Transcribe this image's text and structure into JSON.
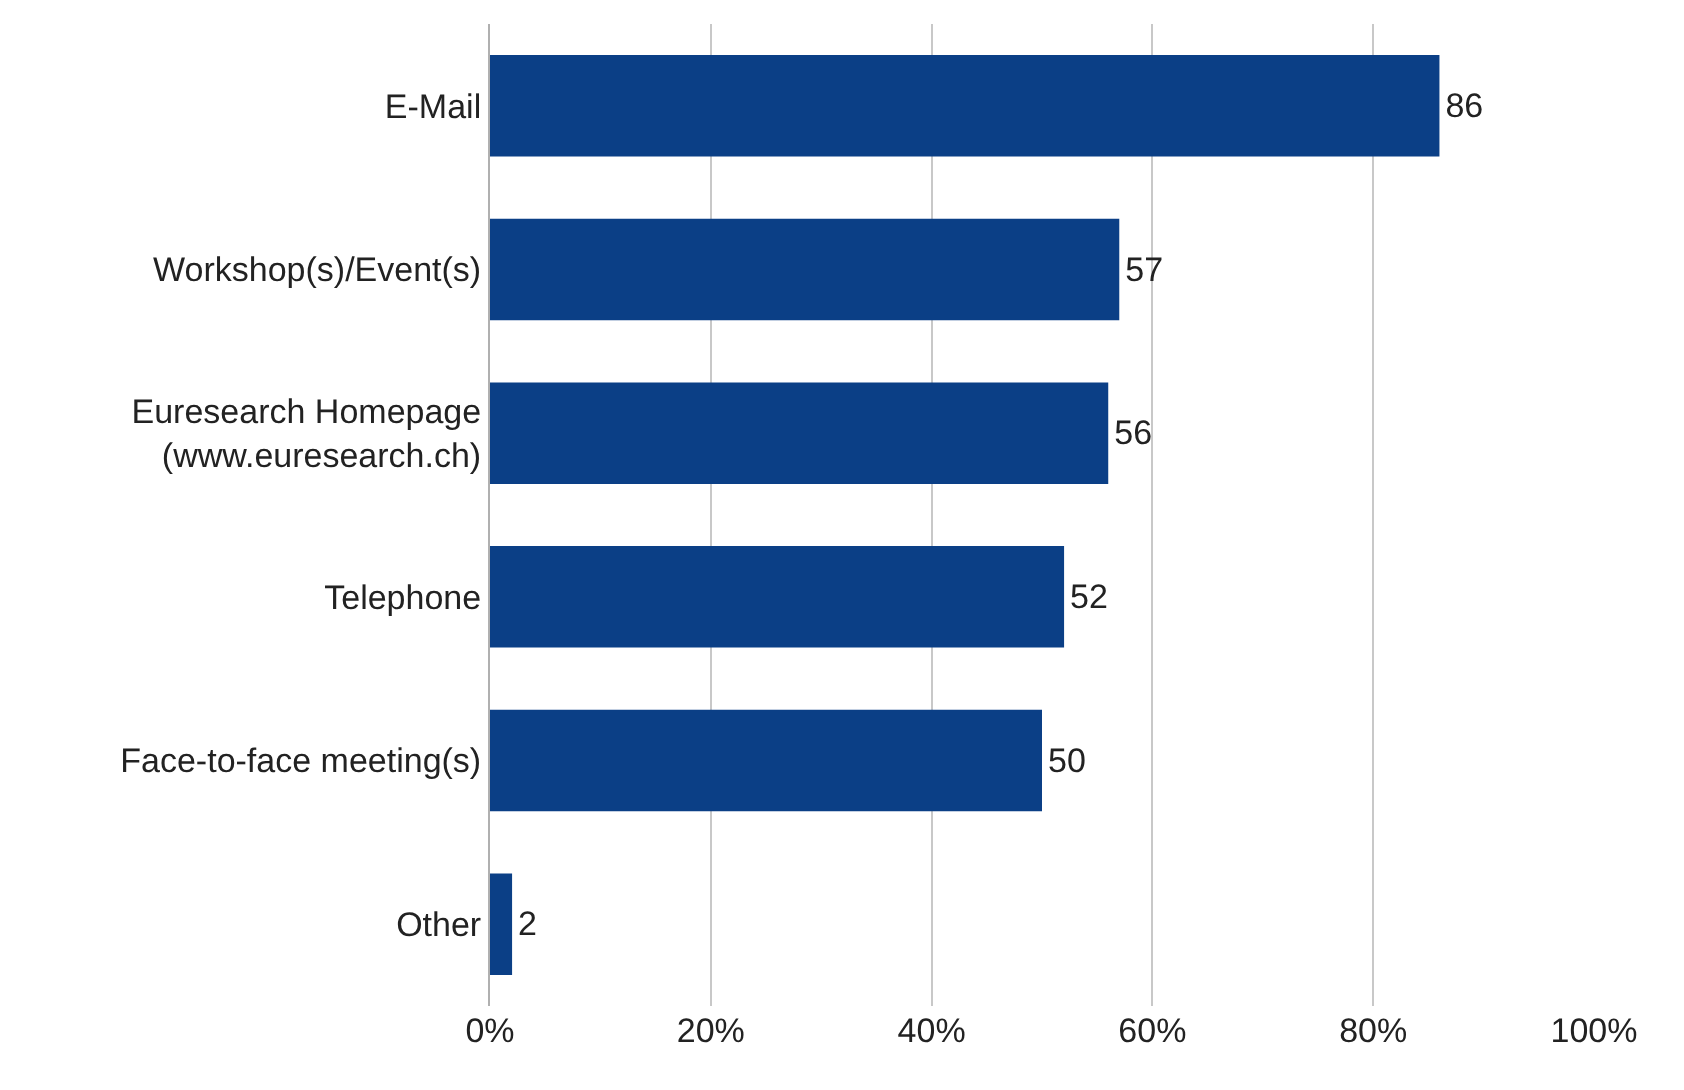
{
  "chart_data": {
    "type": "bar",
    "orientation": "horizontal",
    "categories": [
      "E-Mail",
      "Workshop(s)/Event(s)",
      "Euresearch Homepage\n(www.euresearch.ch)",
      "Telephone",
      "Face-to-face meeting(s)",
      "Other"
    ],
    "values": [
      86,
      57,
      56,
      52,
      50,
      2
    ],
    "color": "#0b3f86",
    "xlim": [
      0,
      100
    ],
    "xticks": [
      {
        "value": 0,
        "label": "0%"
      },
      {
        "value": 20,
        "label": "20%"
      },
      {
        "value": 40,
        "label": "40%"
      },
      {
        "value": 60,
        "label": "60%"
      },
      {
        "value": 80,
        "label": "80%"
      },
      {
        "value": 100,
        "label": "100%"
      }
    ],
    "grid": "x",
    "data_labels": true
  }
}
